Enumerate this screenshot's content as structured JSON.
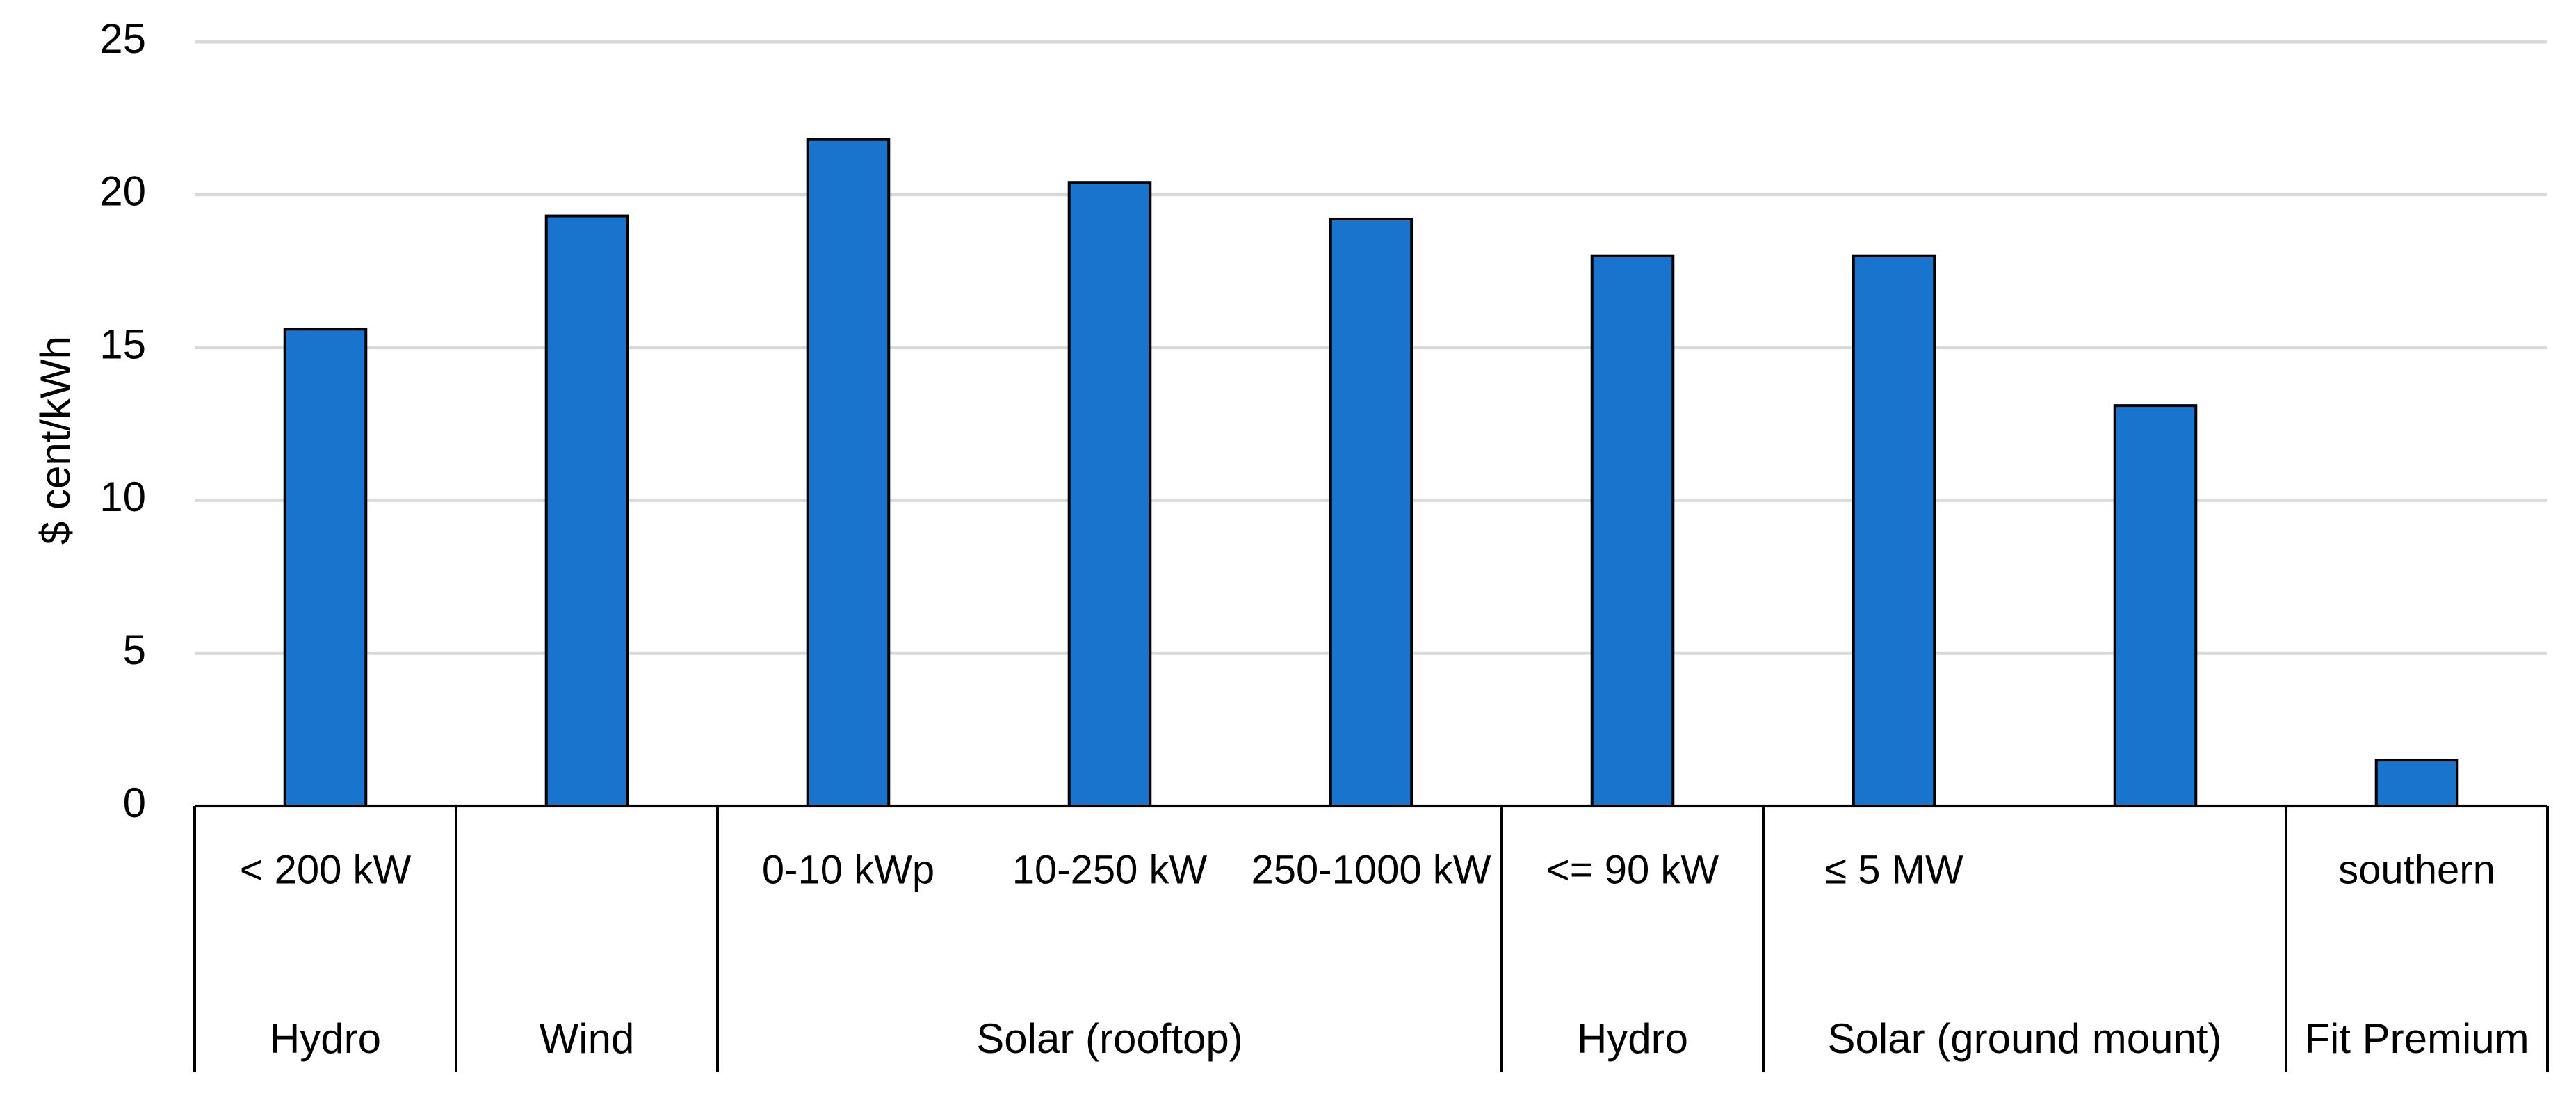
{
  "chart_data": {
    "type": "bar",
    "y_label": "$ cent/kWh",
    "categories": [
      "< 200 kW",
      null,
      "0-10 kWp",
      "10-250 kW",
      "250-1000 kW",
      "<= 90 kW",
      "≤ 5 MW",
      null,
      "southern"
    ],
    "groups": [
      "Hydro",
      "Wind",
      "Solar (rooftop)",
      "Solar (rooftop)",
      "Solar (rooftop)",
      "Hydro",
      "Solar (ground mount)",
      "Solar (ground mount)",
      "Fit Premium"
    ],
    "values": [
      15.6,
      19.3,
      21.8,
      20.4,
      19.2,
      18.0,
      18.0,
      13.1,
      1.5
    ],
    "color": "#1874cd",
    "ylim": [
      0,
      25
    ],
    "yticks": [
      0,
      5,
      10,
      15,
      20,
      25
    ],
    "grid": true
  }
}
